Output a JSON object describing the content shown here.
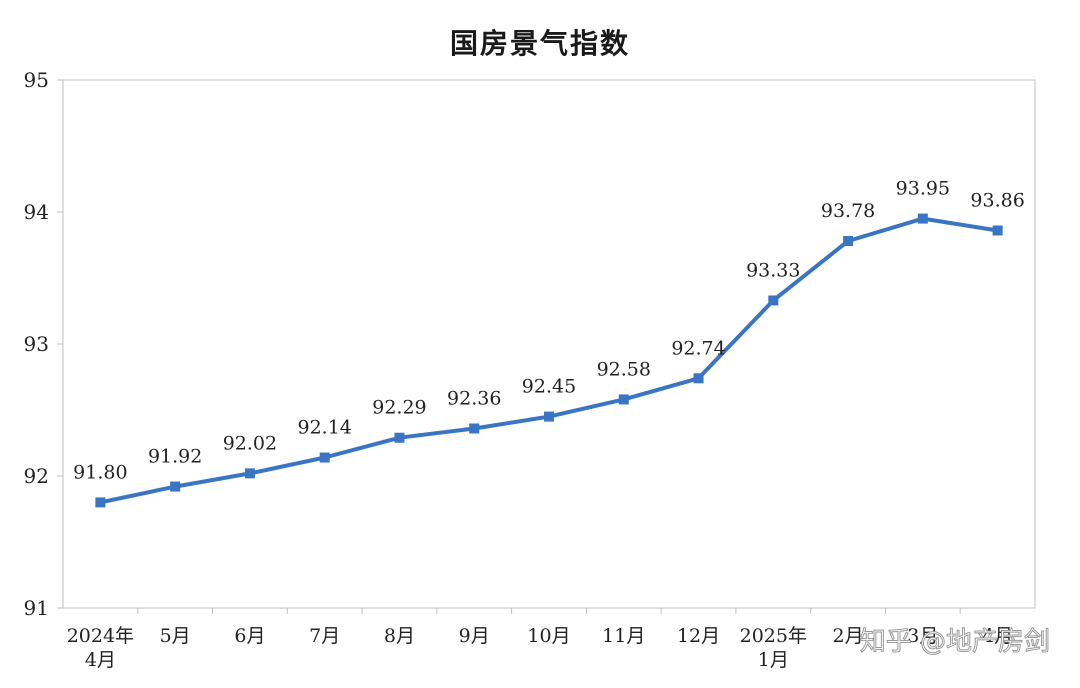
{
  "chart_data": {
    "type": "line",
    "title": "国房景气指数",
    "categories": [
      "2024年\n4月",
      "5月",
      "6月",
      "7月",
      "8月",
      "9月",
      "10月",
      "11月",
      "12月",
      "2025年\n1月",
      "2月",
      "3月",
      "4月"
    ],
    "series": [
      {
        "values": [
          91.8,
          91.92,
          92.02,
          92.14,
          92.29,
          92.36,
          92.45,
          92.58,
          92.74,
          93.33,
          93.78,
          93.95,
          93.86
        ]
      }
    ],
    "data_labels": [
      "91.80",
      "91.92",
      "92.02",
      "92.14",
      "92.29",
      "92.36",
      "92.45",
      "92.58",
      "92.74",
      "93.33",
      "93.78",
      "93.95",
      "93.86"
    ],
    "ylim": [
      91,
      95
    ],
    "yticks": [
      "91",
      "92",
      "93",
      "94",
      "95"
    ],
    "grid": false,
    "colors": {
      "line": "#3a75c4"
    }
  },
  "watermark": "知乎 @地产房剑"
}
